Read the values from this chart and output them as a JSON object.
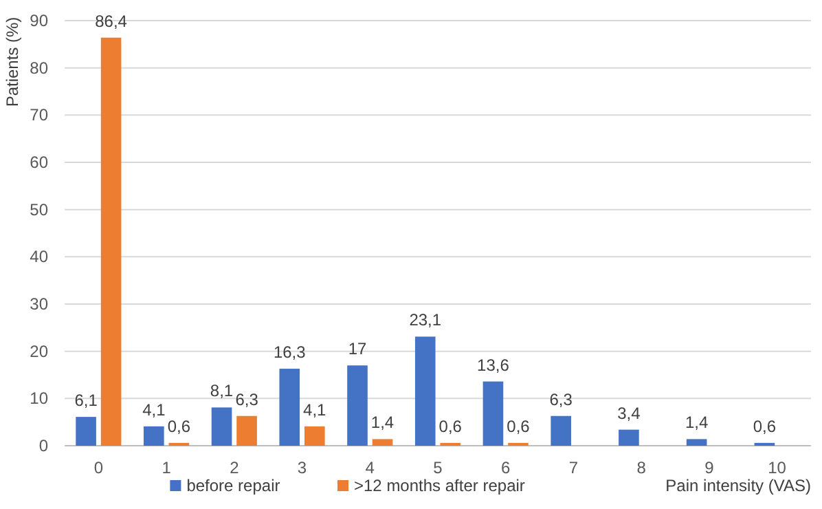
{
  "chart_data": {
    "type": "bar",
    "ylabel": "Patients (%)",
    "xlabel": "Pain intensity (VAS)",
    "categories": [
      "0",
      "1",
      "2",
      "3",
      "4",
      "5",
      "6",
      "7",
      "8",
      "9",
      "10"
    ],
    "series": [
      {
        "name": "before repair",
        "color": "#4472c4",
        "values": [
          6.1,
          4.1,
          8.1,
          16.3,
          17,
          23.1,
          13.6,
          6.3,
          3.4,
          1.4,
          0.6
        ],
        "value_labels": [
          "6,1",
          "4,1",
          "8,1",
          "16,3",
          "17",
          "23,1",
          "13,6",
          "6,3",
          "3,4",
          "1,4",
          "0,6"
        ]
      },
      {
        "name": ">12 months after repair",
        "color": "#ed7d31",
        "values": [
          86.4,
          0.6,
          6.3,
          4.1,
          1.4,
          0.6,
          0.6,
          null,
          null,
          null,
          null
        ],
        "value_labels": [
          "86,4",
          "0,6",
          "6,3",
          "4,1",
          "1,4",
          "0,6",
          "0,6",
          null,
          null,
          null,
          null
        ]
      }
    ],
    "ylim": [
      0,
      90
    ],
    "yticks": [
      0,
      10,
      20,
      30,
      40,
      50,
      60,
      70,
      80,
      90
    ],
    "grid": "y",
    "legend": "bottom"
  }
}
